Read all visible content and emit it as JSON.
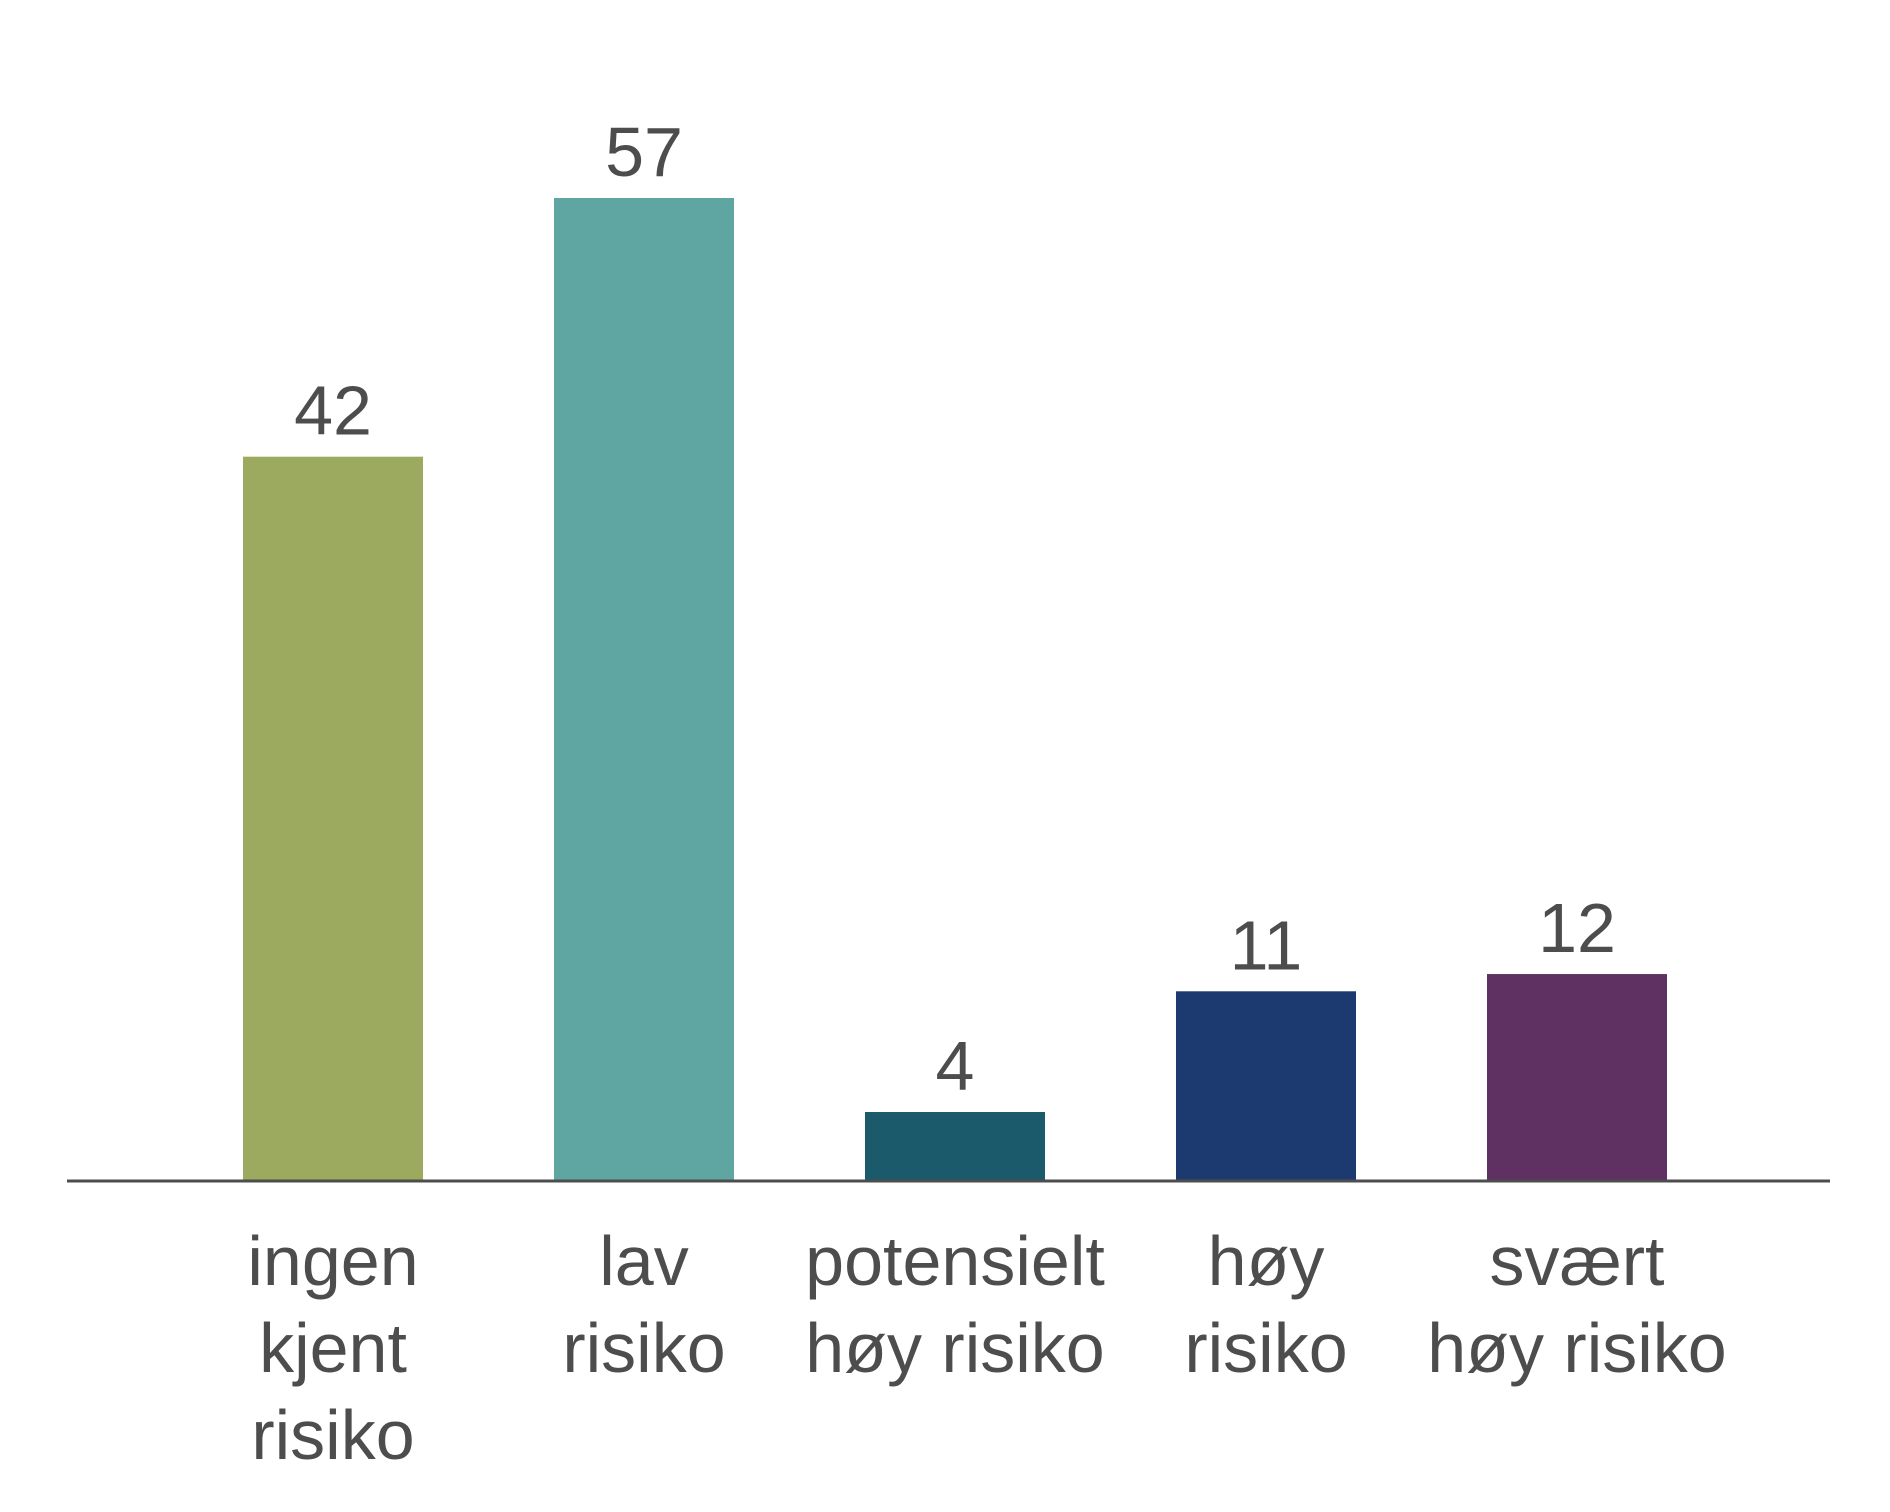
{
  "chart_data": {
    "type": "bar",
    "categories": [
      [
        "ingen",
        "kjent",
        "risiko"
      ],
      [
        "lav",
        "risiko"
      ],
      [
        "potensielt",
        "høy risiko"
      ],
      [
        "høy",
        "risiko"
      ],
      [
        "svært",
        "høy risiko"
      ]
    ],
    "values": [
      42,
      57,
      4,
      11,
      12
    ],
    "data_labels": [
      "42",
      "57",
      "4",
      "11",
      "12"
    ],
    "colors": [
      "#9caa60",
      "#5fa5a2",
      "#1b5a6b",
      "#1d3a70",
      "#5f3163"
    ],
    "axis_color": "#4d4d4d",
    "text_color": "#4d4d4d",
    "ylim": [
      0,
      57
    ],
    "grid": false,
    "legend": "none"
  }
}
